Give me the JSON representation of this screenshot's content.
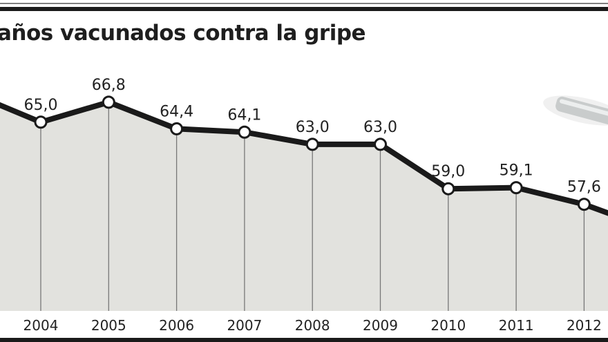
{
  "chart_data": {
    "type": "line",
    "title": "años vacunados contra la gripe",
    "categories": [
      "2004",
      "2005",
      "2006",
      "2007",
      "2008",
      "2009",
      "2010",
      "2011",
      "2012"
    ],
    "values": [
      65.0,
      66.8,
      64.4,
      64.1,
      63.0,
      63.0,
      59.0,
      59.1,
      57.6
    ],
    "data_labels": [
      "65,0",
      "66,8",
      "64,4",
      "64,1",
      "63,0",
      "63,0",
      "59,0",
      "59,1",
      "57,6"
    ],
    "ylim": [
      48,
      76
    ],
    "grid": "vertical drop lines",
    "legend": "none",
    "colors": {
      "line": "#1a1a1a",
      "fill": "#e2e2de",
      "marker_fill": "#ffffff",
      "text": "#222222",
      "bar": "#1a1a1a"
    }
  }
}
